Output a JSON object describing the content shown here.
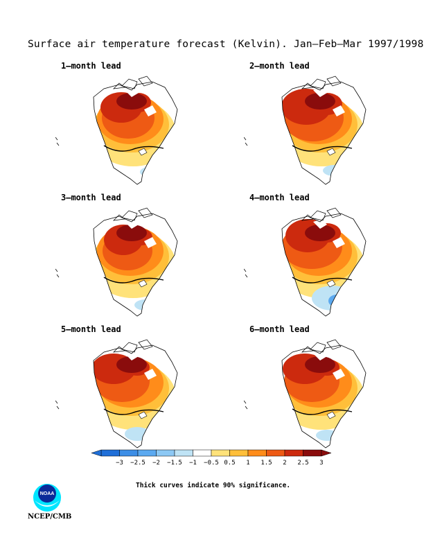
{
  "figure": {
    "title": "Surface air temperature forecast (Kelvin). Jan–Feb–Mar 1997/1998",
    "note": "Thick curves indicate 90% significance.",
    "agency_label": "NCEP/CMB",
    "logo_text": "NOAA"
  },
  "panels": [
    {
      "label": "1–month lead"
    },
    {
      "label": "2–month lead"
    },
    {
      "label": "3–month lead"
    },
    {
      "label": "4–month lead"
    },
    {
      "label": "5–month lead"
    },
    {
      "label": "6–month lead"
    }
  ],
  "legend": {
    "labels": [
      "−3",
      "−2.5",
      "−2",
      "−1.5",
      "−1",
      "−0.5",
      "0.5",
      "1",
      "1.5",
      "2",
      "2.5",
      "3"
    ],
    "colors": [
      "#1f6fd8",
      "#3d8ee6",
      "#5ba9f0",
      "#8cc8f4",
      "#bfe3f5",
      "#ffffff",
      "#ffe27a",
      "#ffbf3a",
      "#ff8c1a",
      "#ee5a14",
      "#cc2a0e",
      "#8a0c0c"
    ],
    "units": "Kelvin"
  },
  "chart_data": {
    "type": "heatmap",
    "title": "Surface air temperature forecast (Kelvin). Jan–Feb–Mar 1997/1998",
    "region": "North America",
    "color_scale_breaks": [
      -3,
      -2.5,
      -2,
      -1.5,
      -1,
      -0.5,
      0.5,
      1,
      1.5,
      2,
      2.5,
      3
    ],
    "panels": [
      {
        "lead_months": 1,
        "max_anomaly": 3,
        "min_anomaly": -1
      },
      {
        "lead_months": 2,
        "max_anomaly": 3,
        "min_anomaly": -1
      },
      {
        "lead_months": 3,
        "max_anomaly": 3,
        "min_anomaly": -1
      },
      {
        "lead_months": 4,
        "max_anomaly": 3,
        "min_anomaly": -2
      },
      {
        "lead_months": 5,
        "max_anomaly": 3,
        "min_anomaly": -1
      },
      {
        "lead_months": 6,
        "max_anomaly": 3,
        "min_anomaly": -1
      }
    ]
  }
}
